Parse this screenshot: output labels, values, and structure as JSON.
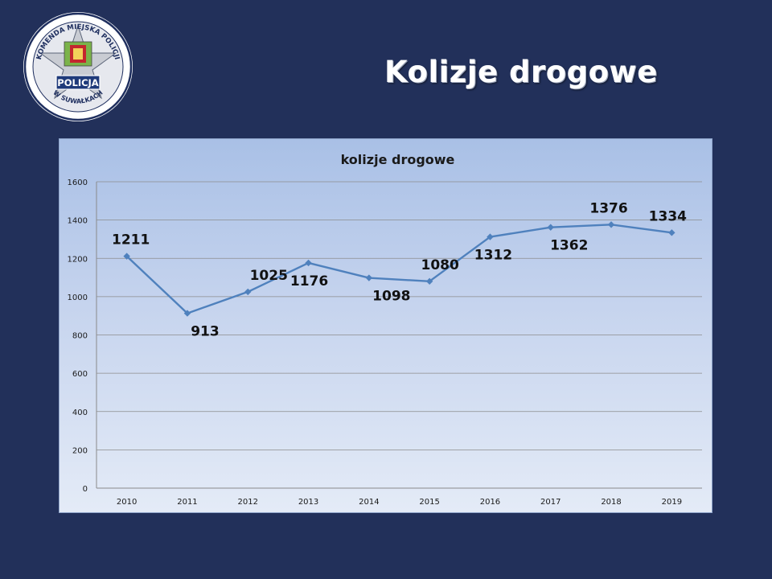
{
  "slide": {
    "title": "Kolizje drogowe"
  },
  "logo": {
    "top_text": "KOMENDA MIEJSKA POLICJI",
    "center_text": "POLICJA",
    "bottom_text": "W SUWAŁKACH"
  },
  "colors": {
    "background": "#22305a",
    "series_line": "#4f81bd",
    "gridline": "#8c8c8c"
  },
  "chart_data": {
    "type": "line",
    "title": "kolizje drogowe",
    "xlabel": "",
    "ylabel": "",
    "categories": [
      "2010",
      "2011",
      "2012",
      "2013",
      "2014",
      "2015",
      "2016",
      "2017",
      "2018",
      "2019"
    ],
    "series": [
      {
        "values": [
          1211,
          913,
          1025,
          1176,
          1098,
          1080,
          1312,
          1362,
          1376,
          1334
        ]
      }
    ],
    "data_labels": [
      "1211",
      "913",
      "1025",
      "1176",
      "1098",
      "1080",
      "1312",
      "1362",
      "1376",
      "1334"
    ],
    "ylim": [
      0,
      1600
    ],
    "yticks": [
      "0",
      "200",
      "400",
      "600",
      "800",
      "1000",
      "1200",
      "1400",
      "1600"
    ],
    "grid": true,
    "legend": "none"
  }
}
